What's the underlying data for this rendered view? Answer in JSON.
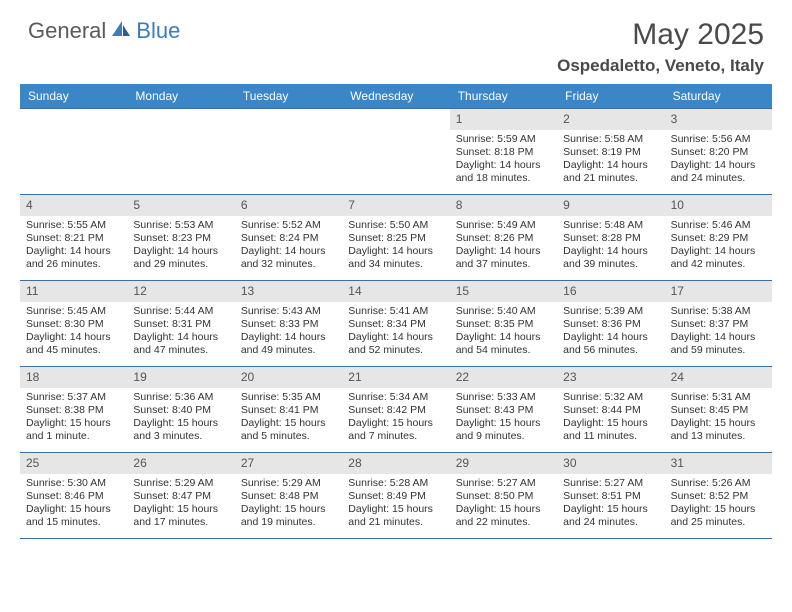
{
  "brand": {
    "text1": "General",
    "text2": "Blue"
  },
  "header": {
    "month": "May 2025",
    "location": "Ospedaletto, Veneto, Italy"
  },
  "calendar": {
    "weekday_bar_color": "#3b86c7",
    "border_color": "#3b6fa0",
    "daynum_bg": "#e6e6e6",
    "weekdays": [
      "Sunday",
      "Monday",
      "Tuesday",
      "Wednesday",
      "Thursday",
      "Friday",
      "Saturday"
    ],
    "weeks": [
      [
        null,
        null,
        null,
        null,
        {
          "num": "1",
          "sunrise": "Sunrise: 5:59 AM",
          "sunset": "Sunset: 8:18 PM",
          "daylight": "Daylight: 14 hours and 18 minutes."
        },
        {
          "num": "2",
          "sunrise": "Sunrise: 5:58 AM",
          "sunset": "Sunset: 8:19 PM",
          "daylight": "Daylight: 14 hours and 21 minutes."
        },
        {
          "num": "3",
          "sunrise": "Sunrise: 5:56 AM",
          "sunset": "Sunset: 8:20 PM",
          "daylight": "Daylight: 14 hours and 24 minutes."
        }
      ],
      [
        {
          "num": "4",
          "sunrise": "Sunrise: 5:55 AM",
          "sunset": "Sunset: 8:21 PM",
          "daylight": "Daylight: 14 hours and 26 minutes."
        },
        {
          "num": "5",
          "sunrise": "Sunrise: 5:53 AM",
          "sunset": "Sunset: 8:23 PM",
          "daylight": "Daylight: 14 hours and 29 minutes."
        },
        {
          "num": "6",
          "sunrise": "Sunrise: 5:52 AM",
          "sunset": "Sunset: 8:24 PM",
          "daylight": "Daylight: 14 hours and 32 minutes."
        },
        {
          "num": "7",
          "sunrise": "Sunrise: 5:50 AM",
          "sunset": "Sunset: 8:25 PM",
          "daylight": "Daylight: 14 hours and 34 minutes."
        },
        {
          "num": "8",
          "sunrise": "Sunrise: 5:49 AM",
          "sunset": "Sunset: 8:26 PM",
          "daylight": "Daylight: 14 hours and 37 minutes."
        },
        {
          "num": "9",
          "sunrise": "Sunrise: 5:48 AM",
          "sunset": "Sunset: 8:28 PM",
          "daylight": "Daylight: 14 hours and 39 minutes."
        },
        {
          "num": "10",
          "sunrise": "Sunrise: 5:46 AM",
          "sunset": "Sunset: 8:29 PM",
          "daylight": "Daylight: 14 hours and 42 minutes."
        }
      ],
      [
        {
          "num": "11",
          "sunrise": "Sunrise: 5:45 AM",
          "sunset": "Sunset: 8:30 PM",
          "daylight": "Daylight: 14 hours and 45 minutes."
        },
        {
          "num": "12",
          "sunrise": "Sunrise: 5:44 AM",
          "sunset": "Sunset: 8:31 PM",
          "daylight": "Daylight: 14 hours and 47 minutes."
        },
        {
          "num": "13",
          "sunrise": "Sunrise: 5:43 AM",
          "sunset": "Sunset: 8:33 PM",
          "daylight": "Daylight: 14 hours and 49 minutes."
        },
        {
          "num": "14",
          "sunrise": "Sunrise: 5:41 AM",
          "sunset": "Sunset: 8:34 PM",
          "daylight": "Daylight: 14 hours and 52 minutes."
        },
        {
          "num": "15",
          "sunrise": "Sunrise: 5:40 AM",
          "sunset": "Sunset: 8:35 PM",
          "daylight": "Daylight: 14 hours and 54 minutes."
        },
        {
          "num": "16",
          "sunrise": "Sunrise: 5:39 AM",
          "sunset": "Sunset: 8:36 PM",
          "daylight": "Daylight: 14 hours and 56 minutes."
        },
        {
          "num": "17",
          "sunrise": "Sunrise: 5:38 AM",
          "sunset": "Sunset: 8:37 PM",
          "daylight": "Daylight: 14 hours and 59 minutes."
        }
      ],
      [
        {
          "num": "18",
          "sunrise": "Sunrise: 5:37 AM",
          "sunset": "Sunset: 8:38 PM",
          "daylight": "Daylight: 15 hours and 1 minute."
        },
        {
          "num": "19",
          "sunrise": "Sunrise: 5:36 AM",
          "sunset": "Sunset: 8:40 PM",
          "daylight": "Daylight: 15 hours and 3 minutes."
        },
        {
          "num": "20",
          "sunrise": "Sunrise: 5:35 AM",
          "sunset": "Sunset: 8:41 PM",
          "daylight": "Daylight: 15 hours and 5 minutes."
        },
        {
          "num": "21",
          "sunrise": "Sunrise: 5:34 AM",
          "sunset": "Sunset: 8:42 PM",
          "daylight": "Daylight: 15 hours and 7 minutes."
        },
        {
          "num": "22",
          "sunrise": "Sunrise: 5:33 AM",
          "sunset": "Sunset: 8:43 PM",
          "daylight": "Daylight: 15 hours and 9 minutes."
        },
        {
          "num": "23",
          "sunrise": "Sunrise: 5:32 AM",
          "sunset": "Sunset: 8:44 PM",
          "daylight": "Daylight: 15 hours and 11 minutes."
        },
        {
          "num": "24",
          "sunrise": "Sunrise: 5:31 AM",
          "sunset": "Sunset: 8:45 PM",
          "daylight": "Daylight: 15 hours and 13 minutes."
        }
      ],
      [
        {
          "num": "25",
          "sunrise": "Sunrise: 5:30 AM",
          "sunset": "Sunset: 8:46 PM",
          "daylight": "Daylight: 15 hours and 15 minutes."
        },
        {
          "num": "26",
          "sunrise": "Sunrise: 5:29 AM",
          "sunset": "Sunset: 8:47 PM",
          "daylight": "Daylight: 15 hours and 17 minutes."
        },
        {
          "num": "27",
          "sunrise": "Sunrise: 5:29 AM",
          "sunset": "Sunset: 8:48 PM",
          "daylight": "Daylight: 15 hours and 19 minutes."
        },
        {
          "num": "28",
          "sunrise": "Sunrise: 5:28 AM",
          "sunset": "Sunset: 8:49 PM",
          "daylight": "Daylight: 15 hours and 21 minutes."
        },
        {
          "num": "29",
          "sunrise": "Sunrise: 5:27 AM",
          "sunset": "Sunset: 8:50 PM",
          "daylight": "Daylight: 15 hours and 22 minutes."
        },
        {
          "num": "30",
          "sunrise": "Sunrise: 5:27 AM",
          "sunset": "Sunset: 8:51 PM",
          "daylight": "Daylight: 15 hours and 24 minutes."
        },
        {
          "num": "31",
          "sunrise": "Sunrise: 5:26 AM",
          "sunset": "Sunset: 8:52 PM",
          "daylight": "Daylight: 15 hours and 25 minutes."
        }
      ]
    ]
  }
}
